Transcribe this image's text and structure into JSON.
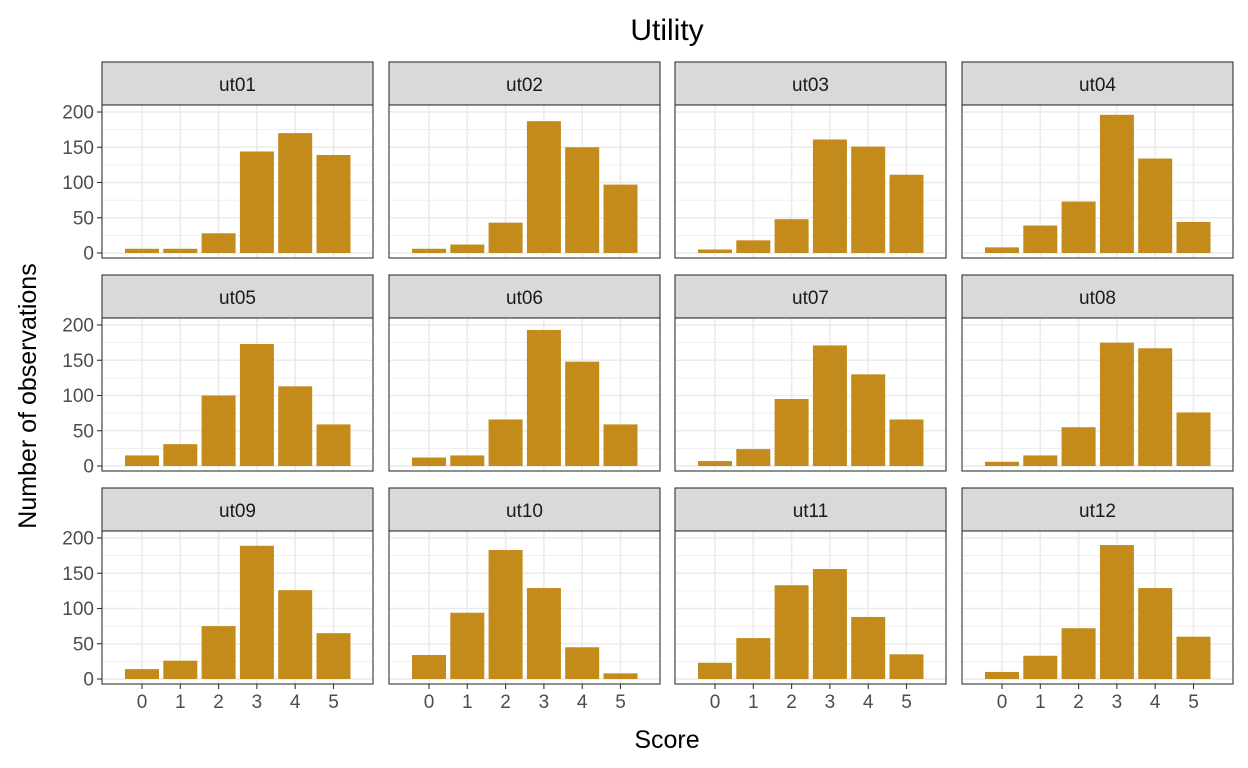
{
  "chart_data": {
    "type": "bar",
    "title": "Utility",
    "xlabel": "Score",
    "ylabel": "Number of observations",
    "categories": [
      "0",
      "1",
      "2",
      "3",
      "4",
      "5"
    ],
    "y_ticks": [
      "0",
      "50",
      "100",
      "150",
      "200"
    ],
    "ylim": [
      0,
      212
    ],
    "grid": true,
    "facet_layout": "3 rows x 4 columns",
    "bar_color": "#C38B1A",
    "series": [
      {
        "name": "ut01",
        "values": [
          6,
          6,
          28,
          144,
          170,
          139
        ]
      },
      {
        "name": "ut02",
        "values": [
          6,
          12,
          43,
          187,
          150,
          97
        ]
      },
      {
        "name": "ut03",
        "values": [
          5,
          18,
          48,
          161,
          151,
          111
        ]
      },
      {
        "name": "ut04",
        "values": [
          8,
          39,
          73,
          196,
          134,
          44
        ]
      },
      {
        "name": "ut05",
        "values": [
          15,
          31,
          100,
          173,
          113,
          59
        ]
      },
      {
        "name": "ut06",
        "values": [
          12,
          15,
          66,
          193,
          148,
          59
        ]
      },
      {
        "name": "ut07",
        "values": [
          7,
          24,
          95,
          171,
          130,
          66
        ]
      },
      {
        "name": "ut08",
        "values": [
          6,
          15,
          55,
          175,
          167,
          76
        ]
      },
      {
        "name": "ut09",
        "values": [
          14,
          26,
          75,
          189,
          126,
          65
        ]
      },
      {
        "name": "ut10",
        "values": [
          34,
          94,
          183,
          129,
          45,
          8
        ]
      },
      {
        "name": "ut11",
        "values": [
          23,
          58,
          133,
          156,
          88,
          35
        ]
      },
      {
        "name": "ut12",
        "values": [
          10,
          33,
          72,
          190,
          129,
          60
        ]
      }
    ]
  }
}
